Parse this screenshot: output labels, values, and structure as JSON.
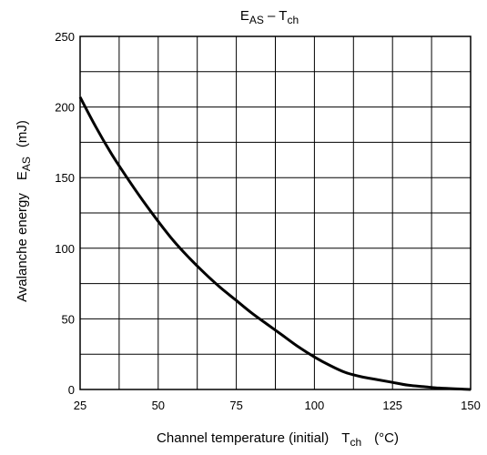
{
  "chart_data": {
    "type": "line",
    "title": {
      "main": "E",
      "main_sub": "AS",
      "sep": " – ",
      "var": "T",
      "var_sub": "ch"
    },
    "xlabel": {
      "text": "Channel temperature (initial)",
      "var": "T",
      "var_sub": "ch",
      "unit": "(°C)"
    },
    "ylabel": {
      "text": "Avalanche energy",
      "var": "E",
      "var_sub": "AS",
      "unit": "(mJ)"
    },
    "xlim": [
      25,
      150
    ],
    "ylim": [
      0,
      250
    ],
    "xticks": [
      "25",
      "50",
      "75",
      "100",
      "125",
      "150"
    ],
    "yticks": [
      "0",
      "50",
      "100",
      "150",
      "200",
      "250"
    ],
    "grid": true,
    "series": [
      {
        "x": [
          25,
          30,
          35,
          40,
          45,
          50,
          55,
          60,
          65,
          70,
          75,
          80,
          85,
          90,
          95,
          100,
          105,
          110,
          115,
          120,
          125,
          130,
          135,
          140,
          145,
          150
        ],
        "y": [
          207,
          186,
          167,
          150,
          134,
          119,
          105,
          93,
          82,
          72,
          63,
          54,
          46,
          38,
          30,
          23,
          17,
          12,
          9,
          7,
          5,
          3,
          2,
          1,
          0.5,
          0
        ]
      }
    ]
  }
}
